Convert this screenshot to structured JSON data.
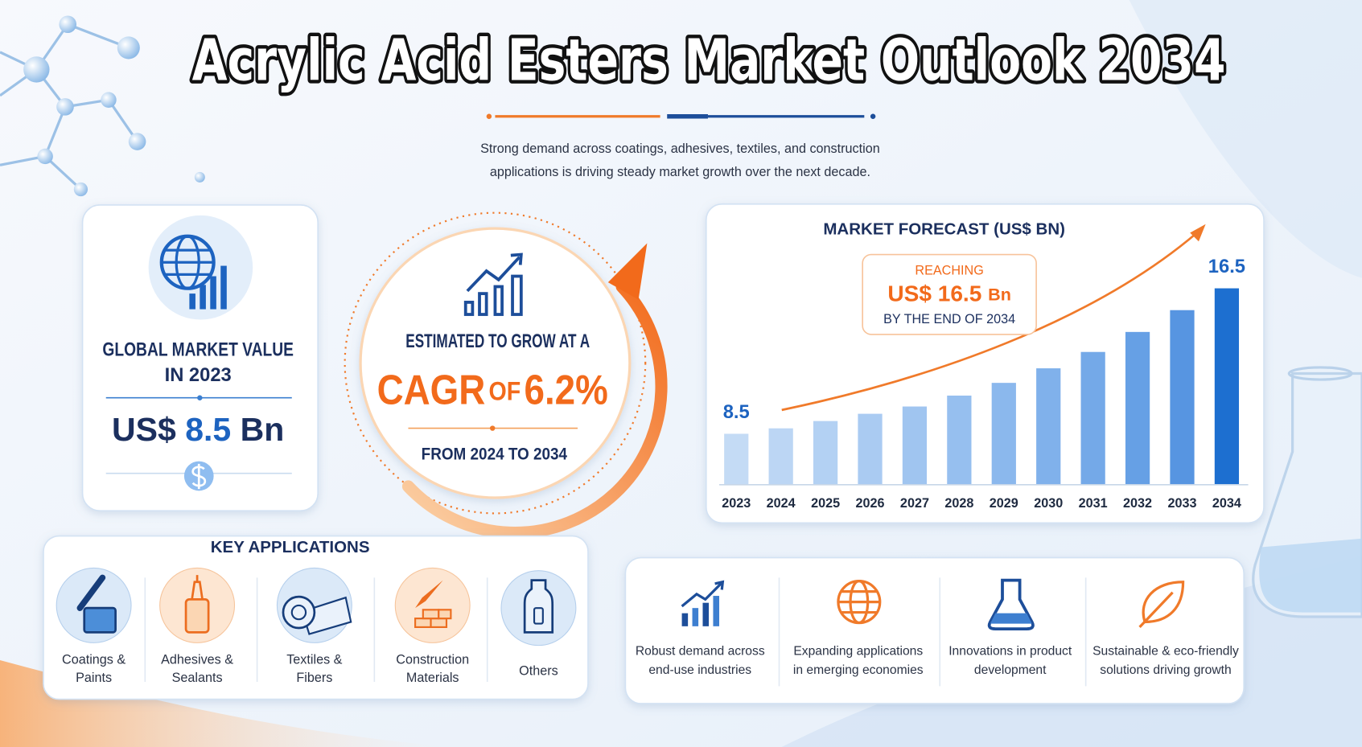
{
  "header": {
    "title": "Acrylic Acid Esters Market Outlook 2034",
    "subtitle": [
      "Strong demand across coatings, adhesives, textiles, and construction",
      "applications is driving steady market growth over the next decade."
    ]
  },
  "market_value": {
    "label": [
      "GLOBAL MARKET VALUE",
      "IN 2023"
    ],
    "prefix": "US$",
    "amount": "8.5",
    "unit": "Bn"
  },
  "cagr": {
    "intro": "ESTIMATED TO GROW AT A",
    "word": "CAGR",
    "of": "OF",
    "rate": "6.2%",
    "period": "FROM 2024 TO 2034"
  },
  "chart_data": {
    "type": "bar",
    "title": "MARKET FORECAST (US$ BN)",
    "annotation": {
      "top": "REACHING",
      "prefix": "US$",
      "amount": "16.5",
      "unit": "Bn",
      "bottom": "BY THE END OF 2034"
    },
    "categories": [
      "2023",
      "2024",
      "2025",
      "2026",
      "2027",
      "2028",
      "2029",
      "2030",
      "2031",
      "2032",
      "2033",
      "2034"
    ],
    "values": [
      8.5,
      8.8,
      9.2,
      9.6,
      10.0,
      10.6,
      11.3,
      12.1,
      13.0,
      14.1,
      15.3,
      16.5
    ],
    "colors": [
      "#c4dbf5",
      "#bcd6f4",
      "#b3d1f3",
      "#aacbf2",
      "#a0c5f0",
      "#96bfef",
      "#8bb8ed",
      "#80b1eb",
      "#74a9e8",
      "#66a0e5",
      "#5795e1",
      "#1d6fd0"
    ],
    "ylim": [
      5.7,
      17.5
    ]
  },
  "applications": {
    "title": "KEY APPLICATIONS",
    "items": [
      [
        "Coatings &",
        "Paints"
      ],
      [
        "Adhesives &",
        "Sealants"
      ],
      [
        "Textiles &",
        "Fibers"
      ],
      [
        "Construction",
        "Materials"
      ],
      [
        "Others"
      ]
    ]
  },
  "drivers": [
    [
      "Robust demand across",
      "end-use industries"
    ],
    [
      "Expanding applications",
      "in emerging economies"
    ],
    [
      "Innovations in product",
      "development"
    ],
    [
      "Sustainable & eco-friendly",
      "solutions driving growth"
    ]
  ]
}
